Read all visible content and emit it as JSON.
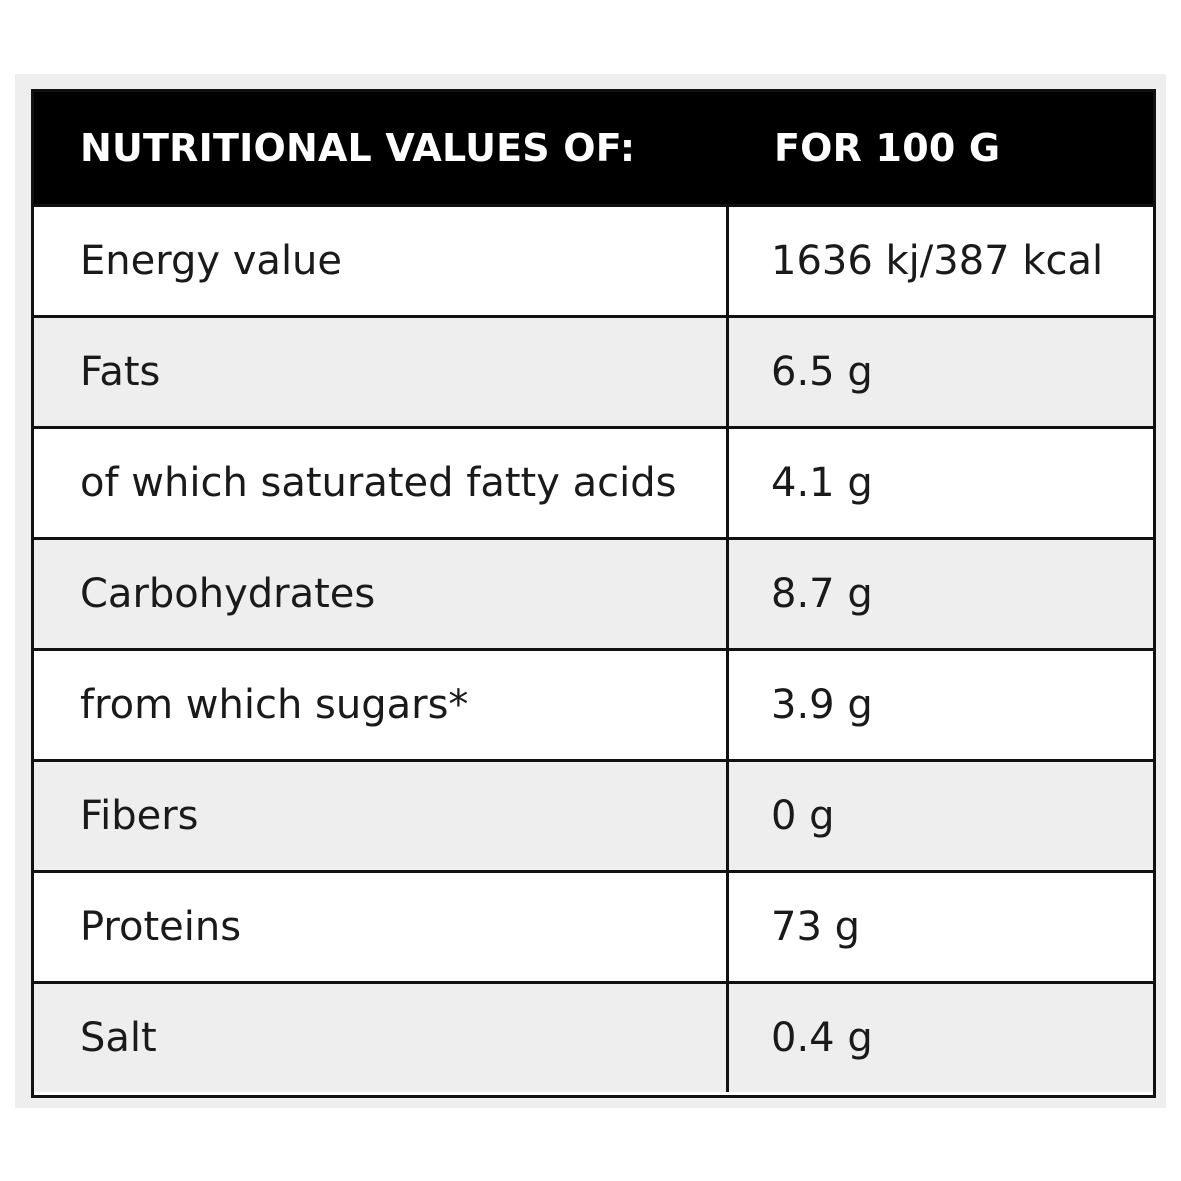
{
  "table": {
    "header": {
      "left": "NUTRITIONAL VALUES OF:",
      "right": "FOR 100 G"
    },
    "rows": [
      {
        "label": "Energy value",
        "value": "1636 kj/387 kcal"
      },
      {
        "label": "Fats",
        "value": "6.5 g"
      },
      {
        "label": "of which saturated fatty acids",
        "value": "4.1 g"
      },
      {
        "label": "Carbohydrates",
        "value": "8.7 g"
      },
      {
        "label": "from which sugars*",
        "value": "3.9 g"
      },
      {
        "label": "Fibers",
        "value": "0 g"
      },
      {
        "label": "Proteins",
        "value": "73 g"
      },
      {
        "label": "Salt",
        "value": "0.4 g"
      }
    ]
  },
  "colors": {
    "header_bg": "#000000",
    "header_text": "#ffffff",
    "alt_row_bg": "#eeeeee",
    "border": "#111111"
  }
}
